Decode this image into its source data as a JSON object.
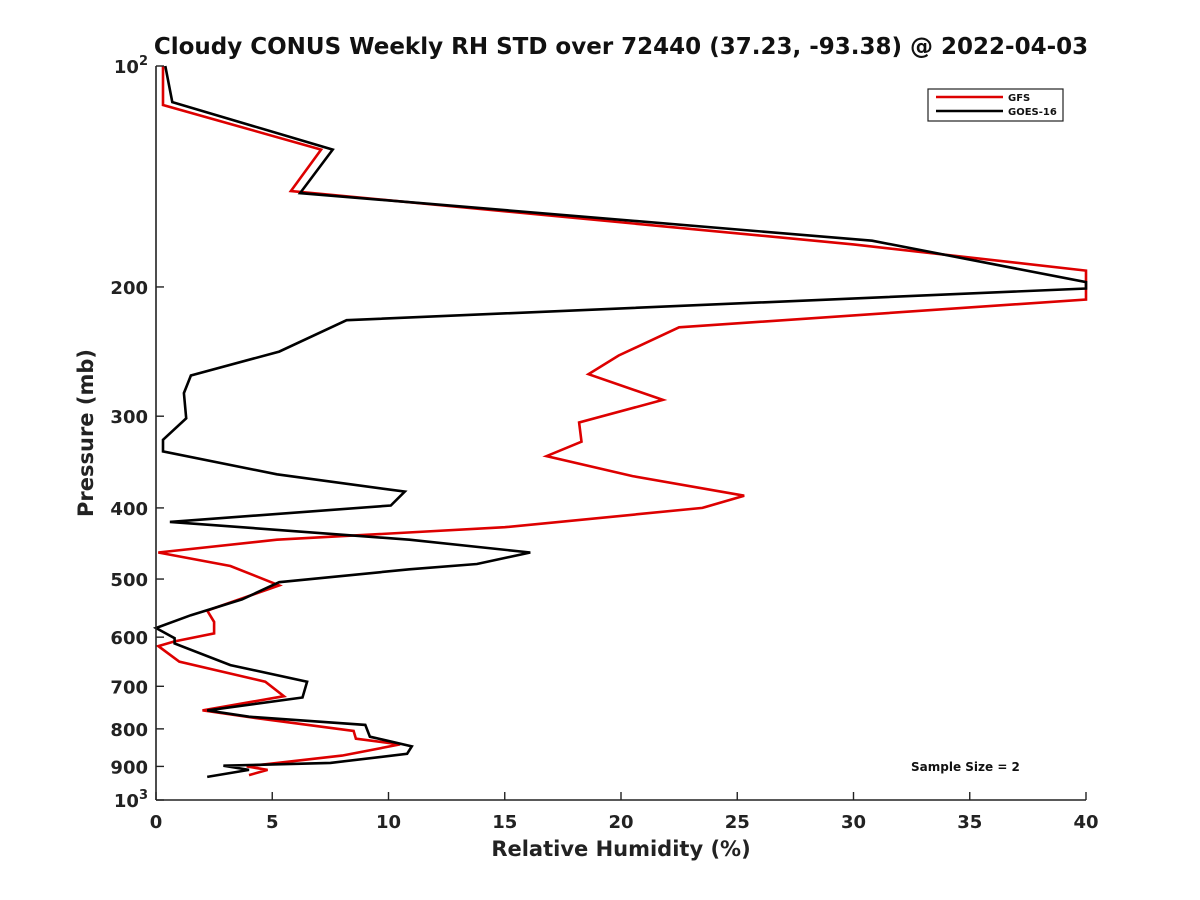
{
  "chart_data": {
    "type": "line",
    "title": "Cloudy CONUS Weekly RH STD over 72440 (37.23, -93.38) @ 2022-04-03",
    "xlabel": "Relative Humidity (%)",
    "ylabel": "Pressure (mb)",
    "xlim": [
      0,
      40
    ],
    "ylim": [
      1000,
      100
    ],
    "y_scale": "log",
    "y_reversed": true,
    "grid": false,
    "legend_position": "top-right",
    "x_ticks": [
      "0",
      "5",
      "10",
      "15",
      "20",
      "25",
      "30",
      "35",
      "40"
    ],
    "y_ticks": [
      {
        "value": 100,
        "base": "10",
        "exp": "2"
      },
      {
        "value": 200,
        "label": "200"
      },
      {
        "value": 300,
        "label": "300"
      },
      {
        "value": 400,
        "label": "400"
      },
      {
        "value": 500,
        "label": "500"
      },
      {
        "value": 600,
        "label": "600"
      },
      {
        "value": 700,
        "label": "700"
      },
      {
        "value": 800,
        "label": "800"
      },
      {
        "value": 900,
        "label": "900"
      },
      {
        "value": 1000,
        "base": "10",
        "exp": "3"
      }
    ],
    "annotation": "Sample Size = 2",
    "series": [
      {
        "name": "GFS",
        "color": "#dd0000",
        "points": [
          [
            4.0,
            925
          ],
          [
            4.8,
            910
          ],
          [
            3.9,
            900
          ],
          [
            8.0,
            870
          ],
          [
            10.5,
            840
          ],
          [
            8.6,
            825
          ],
          [
            8.5,
            805
          ],
          [
            4.5,
            775
          ],
          [
            2.0,
            755
          ],
          [
            5.5,
            722
          ],
          [
            4.7,
            690
          ],
          [
            1.0,
            648
          ],
          [
            0.1,
            617
          ],
          [
            0.8,
            608
          ],
          [
            2.5,
            593
          ],
          [
            2.5,
            572
          ],
          [
            2.2,
            552
          ],
          [
            5.3,
            510
          ],
          [
            3.2,
            480
          ],
          [
            0.1,
            460
          ],
          [
            5.2,
            442
          ],
          [
            15.0,
            425
          ],
          [
            23.5,
            400
          ],
          [
            25.3,
            385
          ],
          [
            20.5,
            362
          ],
          [
            16.8,
            340
          ],
          [
            18.3,
            325
          ],
          [
            18.2,
            306
          ],
          [
            21.8,
            285
          ],
          [
            18.6,
            263
          ],
          [
            19.9,
            248
          ],
          [
            22.5,
            227
          ],
          [
            40.0,
            208
          ],
          [
            40.0,
            190
          ],
          [
            30.0,
            175
          ],
          [
            5.8,
            148
          ],
          [
            7.1,
            130
          ],
          [
            0.3,
            113
          ],
          [
            0.3,
            100
          ]
        ]
      },
      {
        "name": "GOES-16",
        "color": "#000000",
        "points": [
          [
            2.2,
            930
          ],
          [
            4.0,
            910
          ],
          [
            2.9,
            898
          ],
          [
            7.5,
            890
          ],
          [
            10.8,
            865
          ],
          [
            11.0,
            845
          ],
          [
            9.2,
            820
          ],
          [
            9.0,
            790
          ],
          [
            4.0,
            770
          ],
          [
            2.2,
            755
          ],
          [
            6.3,
            725
          ],
          [
            6.5,
            690
          ],
          [
            3.2,
            655
          ],
          [
            0.8,
            612
          ],
          [
            0.8,
            602
          ],
          [
            0.0,
            583
          ],
          [
            1.5,
            560
          ],
          [
            3.7,
            533
          ],
          [
            5.3,
            505
          ],
          [
            10.9,
            485
          ],
          [
            13.8,
            477
          ],
          [
            16.1,
            460
          ],
          [
            10.9,
            442
          ],
          [
            0.6,
            418
          ],
          [
            10.1,
            397
          ],
          [
            10.7,
            380
          ],
          [
            5.2,
            360
          ],
          [
            0.3,
            335
          ],
          [
            0.3,
            323
          ],
          [
            1.3,
            302
          ],
          [
            1.2,
            279
          ],
          [
            1.5,
            264
          ],
          [
            5.3,
            245
          ],
          [
            8.2,
            222
          ],
          [
            40.0,
            201
          ],
          [
            40.0,
            197
          ],
          [
            30.8,
            173
          ],
          [
            6.2,
            149
          ],
          [
            7.6,
            130
          ],
          [
            0.7,
            112
          ],
          [
            0.4,
            100
          ]
        ]
      }
    ]
  }
}
